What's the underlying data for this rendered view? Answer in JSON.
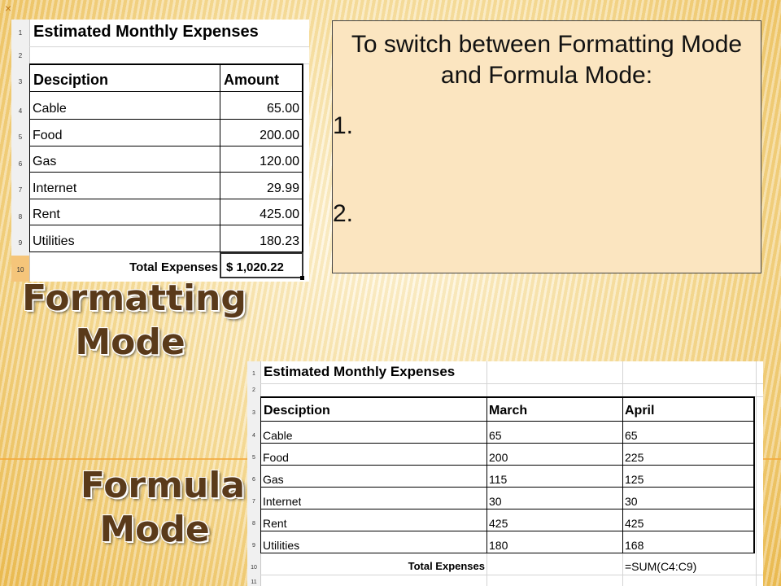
{
  "slide": {
    "corner_mark": "×",
    "instruction_title": "To switch between Formatting Mode and Formula Mode:",
    "steps": [
      "1.",
      "2."
    ],
    "label_formatting": [
      "Formatting",
      "Mode"
    ],
    "label_formula": [
      "Formula",
      "Mode"
    ]
  },
  "formatting_sheet": {
    "title": "Estimated Monthly Expenses",
    "row_numbers": [
      "1",
      "2",
      "3",
      "4",
      "5",
      "6",
      "7",
      "8",
      "9",
      "10"
    ],
    "headers": [
      "Desciption",
      "Amount"
    ],
    "rows": [
      {
        "desc": "Cable",
        "amount": "65.00"
      },
      {
        "desc": "Food",
        "amount": "200.00"
      },
      {
        "desc": "Gas",
        "amount": "120.00"
      },
      {
        "desc": "Internet",
        "amount": "29.99"
      },
      {
        "desc": "Rent",
        "amount": "425.00"
      },
      {
        "desc": "Utilities",
        "amount": "180.23"
      }
    ],
    "total_label": "Total Expenses",
    "total_value": "$ 1,020.22"
  },
  "formula_sheet": {
    "title": "Estimated Monthly Expenses",
    "row_numbers": [
      "1",
      "2",
      "3",
      "4",
      "5",
      "6",
      "7",
      "8",
      "9",
      "10",
      "11"
    ],
    "headers": [
      "Desciption",
      "March",
      "April"
    ],
    "rows": [
      {
        "desc": "Cable",
        "march": "65",
        "april": "65"
      },
      {
        "desc": "Food",
        "march": "200",
        "april": "225"
      },
      {
        "desc": "Gas",
        "march": "115",
        "april": "125"
      },
      {
        "desc": "Internet",
        "march": "30",
        "april": "30"
      },
      {
        "desc": "Rent",
        "march": "425",
        "april": "425"
      },
      {
        "desc": "Utilities",
        "march": "180",
        "april": "168"
      }
    ],
    "total_label": "Total Expenses",
    "total_value": "=SUM(C4:C9)"
  }
}
